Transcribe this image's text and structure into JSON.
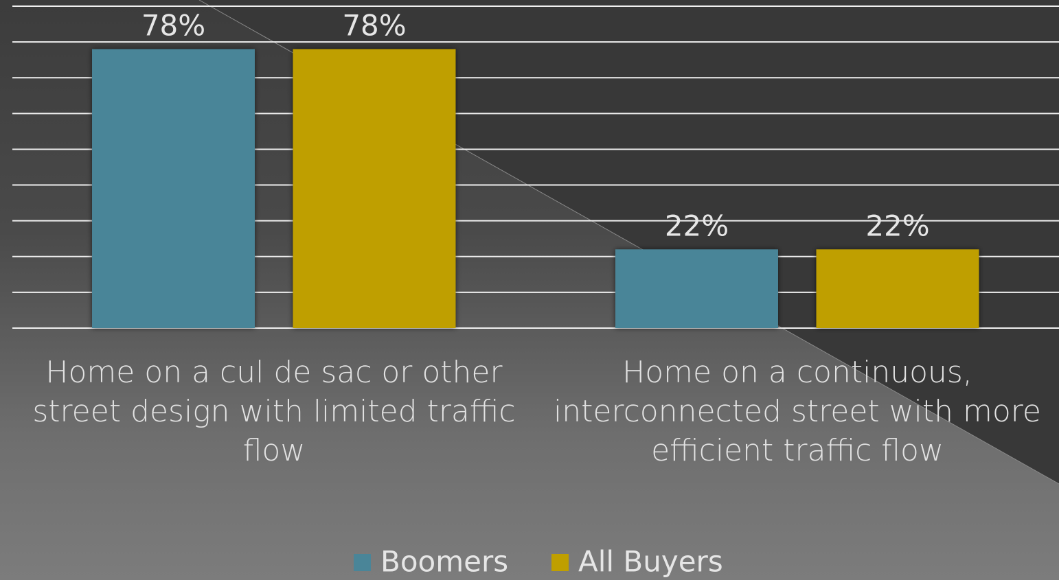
{
  "chart_data": {
    "type": "bar",
    "categories": [
      "Home on a cul de sac or other street design with limited traffic flow",
      "Home on a continuous, interconnected street with more efficient traffic flow"
    ],
    "series": [
      {
        "name": "Boomers",
        "color": "#4a8598",
        "values": [
          78,
          22
        ],
        "value_labels": [
          "78%",
          "22%"
        ]
      },
      {
        "name": "All Buyers",
        "color": "#bf9f00",
        "values": [
          78,
          22
        ],
        "value_labels": [
          "78%",
          "22%"
        ]
      }
    ],
    "ylim": [
      0,
      90
    ],
    "yticks": [
      0,
      10,
      20,
      30,
      40,
      50,
      60,
      70,
      80,
      90
    ],
    "grid": true,
    "legend": "bottom"
  }
}
